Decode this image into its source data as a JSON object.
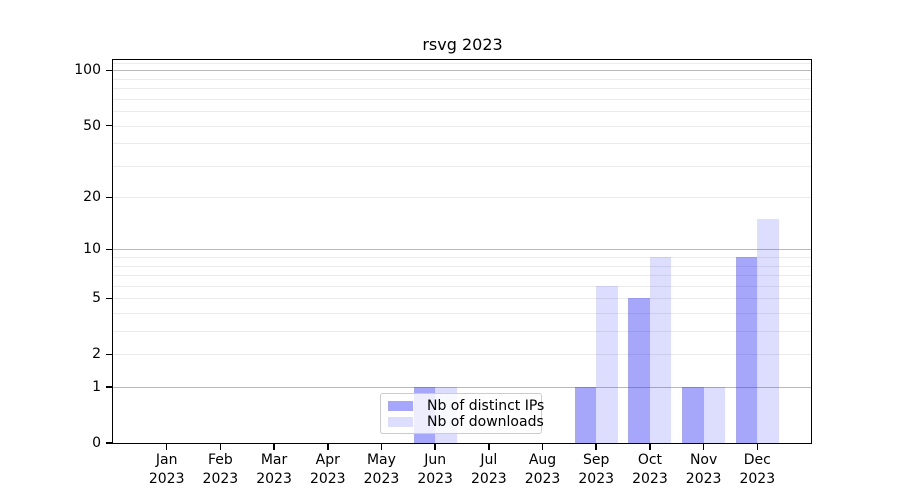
{
  "chart_data": {
    "type": "bar",
    "title": "rsvg 2023",
    "xlabel": "",
    "ylabel": "",
    "yscale": "log1p",
    "ylim": [
      0,
      114
    ],
    "categories": [
      "Jan 2023",
      "Feb 2023",
      "Mar 2023",
      "Apr 2023",
      "May 2023",
      "Jun 2023",
      "Jul 2023",
      "Aug 2023",
      "Sep 2023",
      "Oct 2023",
      "Nov 2023",
      "Dec 2023"
    ],
    "series": [
      {
        "name": "Nb of distinct IPs",
        "color": "rgba(43,43,243,0.42)",
        "values": [
          0,
          0,
          0,
          0,
          0,
          1,
          0,
          0,
          1,
          5,
          1,
          9
        ]
      },
      {
        "name": "Nb of downloads",
        "color": "rgba(43,43,243,0.16)",
        "values": [
          0,
          0,
          0,
          0,
          0,
          1,
          0,
          0,
          6,
          9,
          1,
          15
        ]
      }
    ],
    "yticks": [
      0,
      1,
      2,
      5,
      10,
      20,
      50,
      100
    ],
    "gridlines": {
      "major": [
        1,
        10,
        100
      ],
      "minor": [
        2,
        3,
        4,
        5,
        6,
        7,
        8,
        9,
        20,
        30,
        40,
        50,
        60,
        70,
        80,
        90,
        110
      ]
    },
    "legend_position": "lower center",
    "grid": true
  }
}
